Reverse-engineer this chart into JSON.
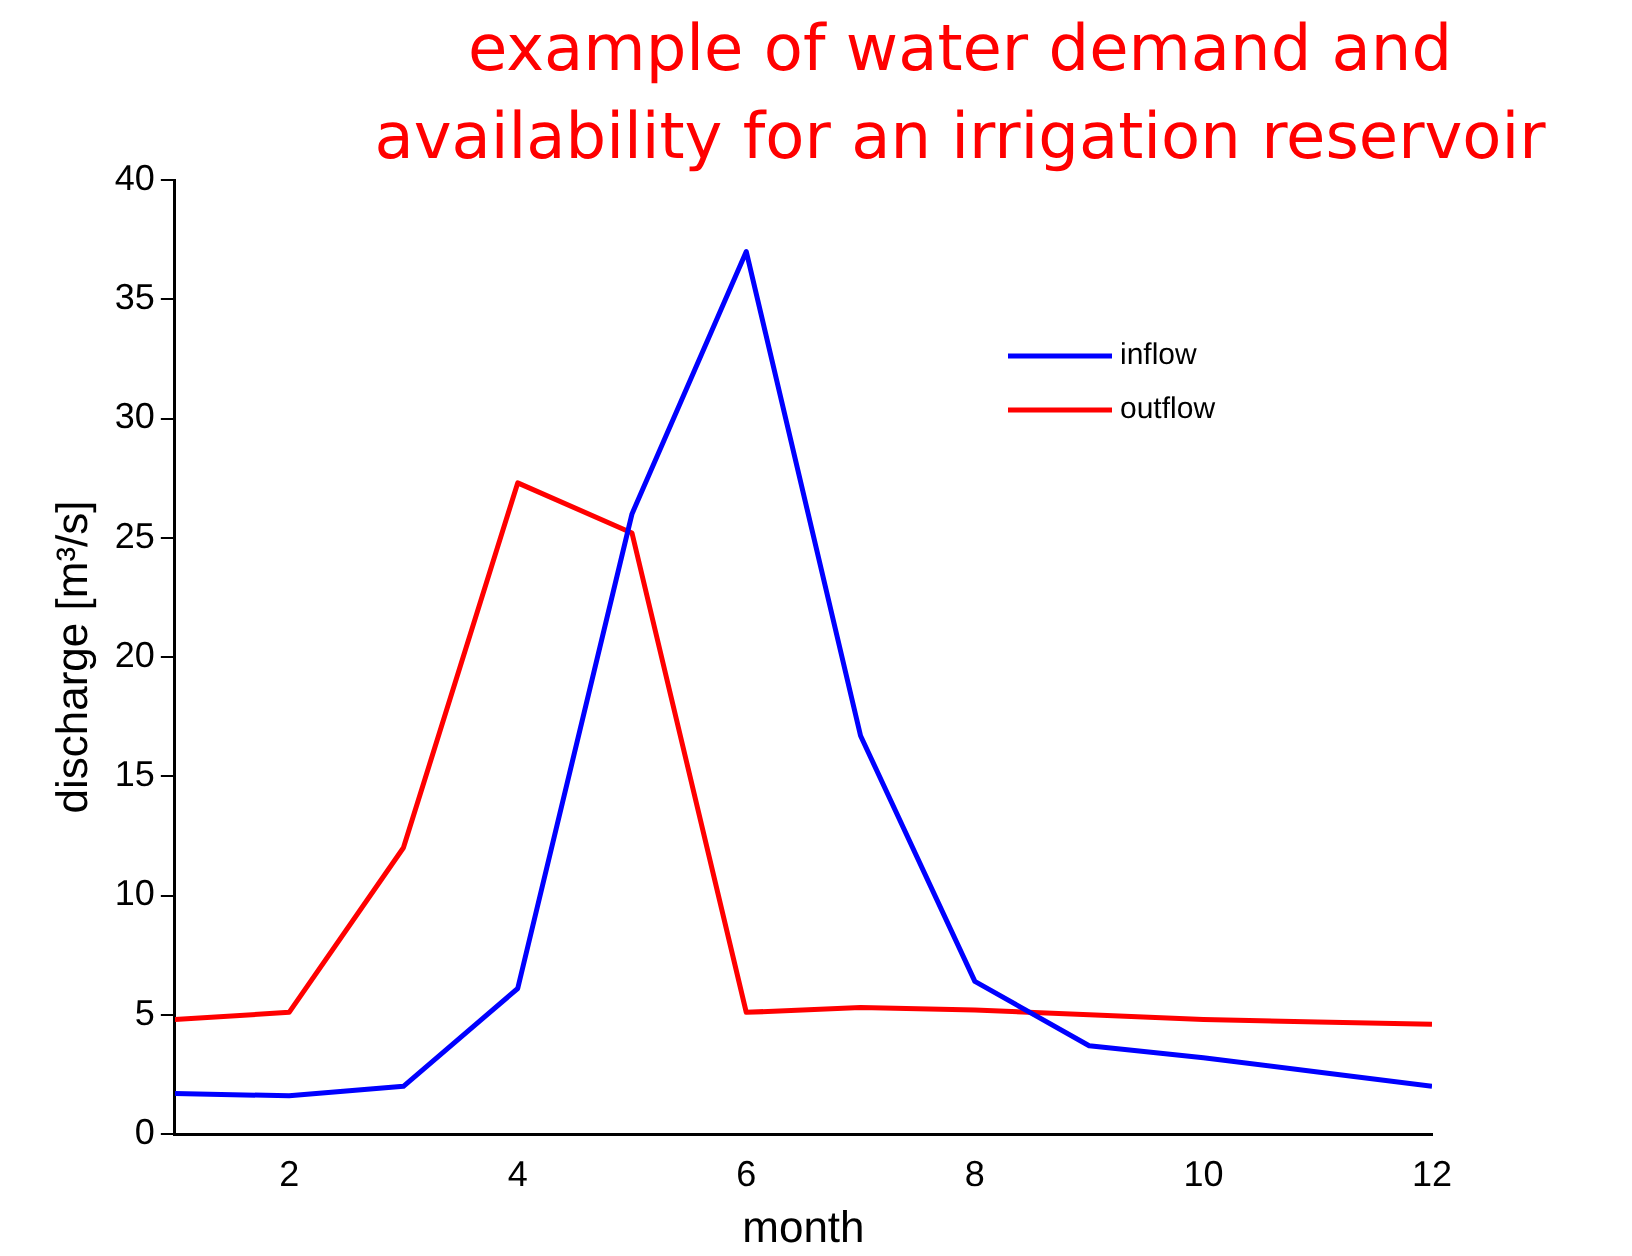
{
  "chart_data": {
    "type": "line",
    "title": "example of water demand and availability for an irrigation reservoir",
    "xlabel": "month",
    "ylabel": "discharge [m³/s]",
    "x": [
      1,
      2,
      3,
      4,
      5,
      6,
      7,
      8,
      9,
      10,
      11,
      12
    ],
    "series": [
      {
        "name": "inflow",
        "color": "#0000ff",
        "values": [
          1.7,
          1.6,
          2.0,
          6.1,
          26,
          37,
          16.7,
          6.4,
          3.7,
          3.2,
          2.6,
          2.0
        ]
      },
      {
        "name": "outflow",
        "color": "#ff0000",
        "values": [
          4.8,
          5.1,
          12,
          27.3,
          25.2,
          5.1,
          5.3,
          5.2,
          5.0,
          4.8,
          4.7,
          4.6
        ]
      }
    ],
    "xlim": [
      1,
      12
    ],
    "xticks": [
      2,
      4,
      6,
      8,
      10,
      12
    ],
    "ylim": [
      0,
      40
    ],
    "yticks": [
      0,
      5,
      10,
      15,
      20,
      25,
      30,
      35,
      40
    ],
    "grid": false,
    "legend": "top right",
    "marker": "none",
    "line_style": "solid"
  }
}
